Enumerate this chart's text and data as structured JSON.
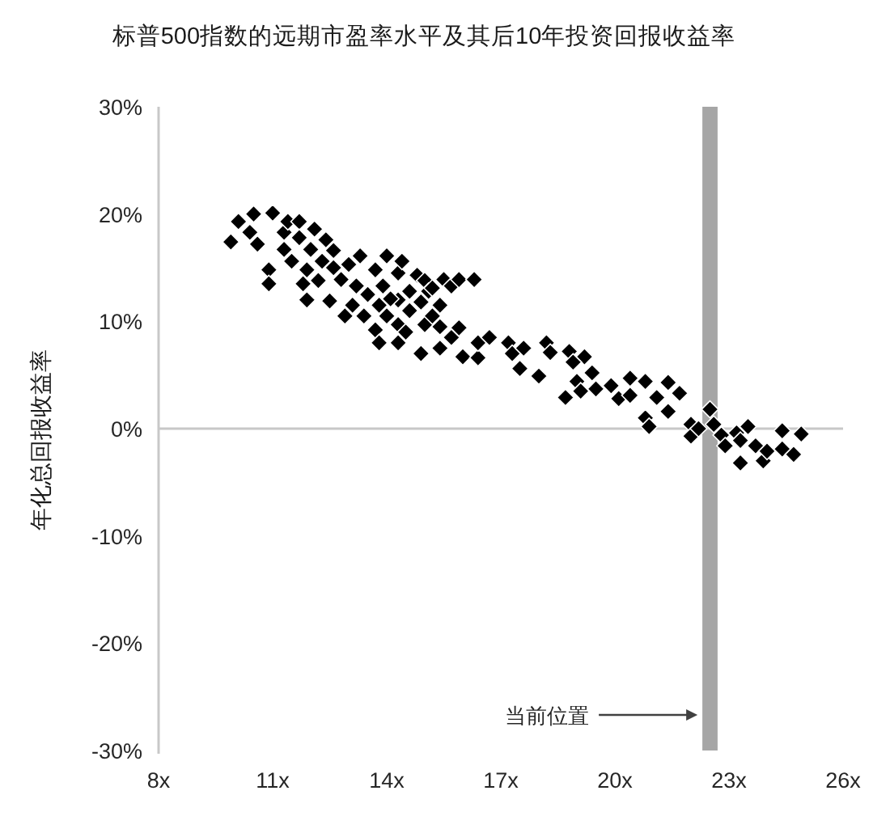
{
  "chart_data": {
    "type": "scatter",
    "title": "标普500指数的远期市盈率水平及其后10年投资回报收益率",
    "ylabel": "年化总回报收益率",
    "x": [
      9.9,
      10.1,
      10.5,
      10.4,
      10.6,
      11.0,
      10.9,
      10.9,
      11.3,
      11.3,
      11.4,
      11.7,
      11.7,
      11.5,
      11.8,
      11.9,
      12.0,
      12.1,
      12.4,
      11.9,
      12.3,
      12.6,
      12.2,
      12.5,
      12.6,
      12.8,
      12.9,
      13.0,
      13.3,
      13.2,
      13.1,
      13.5,
      13.4,
      13.7,
      13.8,
      13.7,
      13.9,
      14.0,
      14.0,
      13.8,
      14.3,
      14.3,
      14.4,
      14.3,
      14.1,
      14.3,
      14.6,
      14.5,
      14.8,
      14.6,
      14.9,
      15.0,
      15.0,
      14.9,
      15.2,
      15.4,
      15.4,
      15.1,
      15.2,
      15.5,
      15.7,
      15.9,
      16.3,
      15.4,
      15.7,
      15.9,
      16.0,
      16.4,
      16.4,
      16.7,
      17.2,
      17.3,
      17.6,
      17.5,
      18.0,
      18.2,
      18.3,
      18.8,
      19.2,
      18.9,
      19.4,
      19.0,
      18.7,
      19.1,
      19.5,
      19.9,
      20.4,
      20.1,
      20.4,
      20.8,
      21.1,
      21.4,
      21.7,
      21.4,
      20.8,
      20.9,
      22.0,
      22.0,
      22.2,
      22.5,
      22.6,
      22.8,
      22.9,
      23.2,
      23.5,
      23.3,
      23.7,
      23.9,
      24.0,
      24.4,
      24.4,
      24.7,
      24.9,
      23.3
    ],
    "values": [
      17.4,
      19.3,
      20.0,
      18.3,
      17.2,
      20.1,
      14.8,
      13.5,
      18.3,
      16.7,
      19.3,
      19.3,
      17.8,
      15.6,
      13.5,
      12.0,
      16.7,
      18.6,
      17.6,
      14.8,
      15.6,
      16.6,
      13.8,
      11.9,
      15.0,
      13.9,
      10.5,
      15.3,
      16.1,
      13.3,
      11.5,
      12.5,
      10.5,
      14.8,
      11.5,
      9.2,
      13.3,
      16.1,
      10.5,
      8.0,
      8.0,
      14.5,
      15.6,
      12.0,
      12.1,
      9.7,
      12.8,
      9.0,
      14.3,
      11.0,
      11.8,
      9.7,
      13.8,
      7.0,
      10.5,
      9.5,
      7.5,
      12.8,
      13.1,
      13.9,
      13.3,
      13.9,
      13.9,
      11.5,
      8.5,
      9.4,
      6.7,
      6.6,
      8.0,
      8.5,
      8.0,
      7.0,
      7.5,
      5.6,
      4.9,
      8.0,
      7.1,
      7.2,
      6.7,
      6.2,
      5.2,
      4.4,
      2.9,
      3.5,
      3.7,
      4.0,
      4.7,
      2.8,
      3.1,
      4.4,
      2.9,
      4.3,
      3.3,
      1.6,
      1.0,
      0.2,
      0.4,
      -0.7,
      0.0,
      1.8,
      0.4,
      -0.6,
      -1.6,
      -0.4,
      0.2,
      -3.2,
      -1.6,
      -3.0,
      -2.1,
      -0.2,
      -1.9,
      -2.4,
      -0.5,
      -1.1
    ],
    "color": "#000000",
    "marker": "diamond",
    "xlim": [
      8,
      26
    ],
    "ylim": [
      -30,
      30
    ],
    "xticks": [
      {
        "value": 8,
        "label": "8x"
      },
      {
        "value": 11,
        "label": "11x"
      },
      {
        "value": 14,
        "label": "14x"
      },
      {
        "value": 17,
        "label": "17x"
      },
      {
        "value": 20,
        "label": "20x"
      },
      {
        "value": 23,
        "label": "23x"
      },
      {
        "value": 26,
        "label": "26x"
      }
    ],
    "yticks": [
      {
        "value": 30,
        "label": "30%"
      },
      {
        "value": 20,
        "label": "20%"
      },
      {
        "value": 10,
        "label": "10%"
      },
      {
        "value": 0,
        "label": "0%"
      },
      {
        "value": -10,
        "label": "-10%"
      },
      {
        "value": -20,
        "label": "-20%"
      },
      {
        "value": -30,
        "label": "-30%"
      }
    ],
    "bands": [
      {
        "axis": "x",
        "from": 22.3,
        "to": 22.7,
        "label": "当前位置",
        "color": "#a6a6a6"
      }
    ]
  }
}
